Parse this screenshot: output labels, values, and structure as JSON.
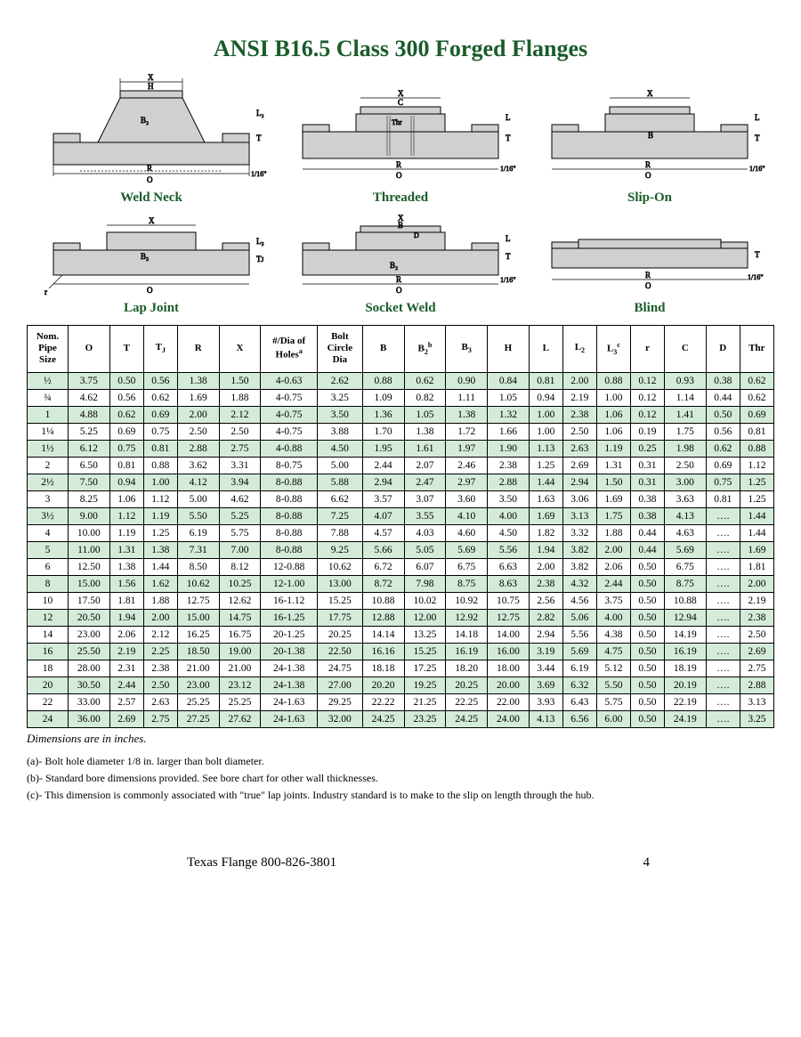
{
  "title": "ANSI B16.5 Class 300 Forged Flanges",
  "diagram_labels": {
    "weld_neck": "Weld Neck",
    "threaded": "Threaded",
    "slip_on": "Slip-On",
    "lap_joint": "Lap Joint",
    "socket_weld": "Socket Weld",
    "blind": "Blind"
  },
  "table": {
    "headers_plain": [
      "Nom. Pipe Size",
      "O",
      "T",
      "TJ",
      "R",
      "X",
      "#/Dia of Holesa",
      "Bolt Circle Dia",
      "B",
      "B2b",
      "B3",
      "H",
      "L",
      "L2",
      "L3c",
      "r",
      "C",
      "D",
      "Thr"
    ],
    "header_html": {
      "nom": "Nom.<br>Pipe<br>Size",
      "tj": "T<span class='sub'>J</span>",
      "holes": "#/Dia of<br>Holes<span class='sup'>a</span>",
      "bolt": "Bolt<br>Circle<br>Dia",
      "b2": "B<span class='sub'>2</span><span class='sup'>b</span>",
      "b3": "B<span class='sub'>3</span>",
      "l2": "L<span class='sub'>2</span>",
      "l3": "L<span class='sub'>3</span><span class='sup'>c</span>"
    },
    "rows": [
      [
        "½",
        "3.75",
        "0.50",
        "0.56",
        "1.38",
        "1.50",
        "4-0.63",
        "2.62",
        "0.88",
        "0.62",
        "0.90",
        "0.84",
        "0.81",
        "2.00",
        "0.88",
        "0.12",
        "0.93",
        "0.38",
        "0.62"
      ],
      [
        "¾",
        "4.62",
        "0.56",
        "0.62",
        "1.69",
        "1.88",
        "4-0.75",
        "3.25",
        "1.09",
        "0.82",
        "1.11",
        "1.05",
        "0.94",
        "2.19",
        "1.00",
        "0.12",
        "1.14",
        "0.44",
        "0.62"
      ],
      [
        "1",
        "4.88",
        "0.62",
        "0.69",
        "2.00",
        "2.12",
        "4-0.75",
        "3.50",
        "1.36",
        "1.05",
        "1.38",
        "1.32",
        "1.00",
        "2.38",
        "1.06",
        "0.12",
        "1.41",
        "0.50",
        "0.69"
      ],
      [
        "1¼",
        "5.25",
        "0.69",
        "0.75",
        "2.50",
        "2.50",
        "4-0.75",
        "3.88",
        "1.70",
        "1.38",
        "1.72",
        "1.66",
        "1.00",
        "2.50",
        "1.06",
        "0.19",
        "1.75",
        "0.56",
        "0.81"
      ],
      [
        "1½",
        "6.12",
        "0.75",
        "0.81",
        "2.88",
        "2.75",
        "4-0.88",
        "4.50",
        "1.95",
        "1.61",
        "1.97",
        "1.90",
        "1.13",
        "2.63",
        "1.19",
        "0.25",
        "1.98",
        "0.62",
        "0.88"
      ],
      [
        "2",
        "6.50",
        "0.81",
        "0.88",
        "3.62",
        "3.31",
        "8-0.75",
        "5.00",
        "2.44",
        "2.07",
        "2.46",
        "2.38",
        "1.25",
        "2.69",
        "1.31",
        "0.31",
        "2.50",
        "0.69",
        "1.12"
      ],
      [
        "2½",
        "7.50",
        "0.94",
        "1.00",
        "4.12",
        "3.94",
        "8-0.88",
        "5.88",
        "2.94",
        "2.47",
        "2.97",
        "2.88",
        "1.44",
        "2.94",
        "1.50",
        "0.31",
        "3.00",
        "0.75",
        "1.25"
      ],
      [
        "3",
        "8.25",
        "1.06",
        "1.12",
        "5.00",
        "4.62",
        "8-0.88",
        "6.62",
        "3.57",
        "3.07",
        "3.60",
        "3.50",
        "1.63",
        "3.06",
        "1.69",
        "0.38",
        "3.63",
        "0.81",
        "1.25"
      ],
      [
        "3½",
        "9.00",
        "1.12",
        "1.19",
        "5.50",
        "5.25",
        "8-0.88",
        "7.25",
        "4.07",
        "3.55",
        "4.10",
        "4.00",
        "1.69",
        "3.13",
        "1.75",
        "0.38",
        "4.13",
        "….",
        "1.44"
      ],
      [
        "4",
        "10.00",
        "1.19",
        "1.25",
        "6.19",
        "5.75",
        "8-0.88",
        "7.88",
        "4.57",
        "4.03",
        "4.60",
        "4.50",
        "1.82",
        "3.32",
        "1.88",
        "0.44",
        "4.63",
        "….",
        "1.44"
      ],
      [
        "5",
        "11.00",
        "1.31",
        "1.38",
        "7.31",
        "7.00",
        "8-0.88",
        "9.25",
        "5.66",
        "5.05",
        "5.69",
        "5.56",
        "1.94",
        "3.82",
        "2.00",
        "0.44",
        "5.69",
        "….",
        "1.69"
      ],
      [
        "6",
        "12.50",
        "1.38",
        "1.44",
        "8.50",
        "8.12",
        "12-0.88",
        "10.62",
        "6.72",
        "6.07",
        "6.75",
        "6.63",
        "2.00",
        "3.82",
        "2.06",
        "0.50",
        "6.75",
        "….",
        "1.81"
      ],
      [
        "8",
        "15.00",
        "1.56",
        "1.62",
        "10.62",
        "10.25",
        "12-1.00",
        "13.00",
        "8.72",
        "7.98",
        "8.75",
        "8.63",
        "2.38",
        "4.32",
        "2.44",
        "0.50",
        "8.75",
        "….",
        "2.00"
      ],
      [
        "10",
        "17.50",
        "1.81",
        "1.88",
        "12.75",
        "12.62",
        "16-1.12",
        "15.25",
        "10.88",
        "10.02",
        "10.92",
        "10.75",
        "2.56",
        "4.56",
        "3.75",
        "0.50",
        "10.88",
        "….",
        "2.19"
      ],
      [
        "12",
        "20.50",
        "1.94",
        "2.00",
        "15.00",
        "14.75",
        "16-1.25",
        "17.75",
        "12.88",
        "12.00",
        "12.92",
        "12.75",
        "2.82",
        "5.06",
        "4.00",
        "0.50",
        "12.94",
        "….",
        "2.38"
      ],
      [
        "14",
        "23.00",
        "2.06",
        "2.12",
        "16.25",
        "16.75",
        "20-1.25",
        "20.25",
        "14.14",
        "13.25",
        "14.18",
        "14.00",
        "2.94",
        "5.56",
        "4.38",
        "0.50",
        "14.19",
        "….",
        "2.50"
      ],
      [
        "16",
        "25.50",
        "2.19",
        "2.25",
        "18.50",
        "19.00",
        "20-1.38",
        "22.50",
        "16.16",
        "15.25",
        "16.19",
        "16.00",
        "3.19",
        "5.69",
        "4.75",
        "0.50",
        "16.19",
        "….",
        "2.69"
      ],
      [
        "18",
        "28.00",
        "2.31",
        "2.38",
        "21.00",
        "21.00",
        "24-1.38",
        "24.75",
        "18.18",
        "17.25",
        "18.20",
        "18.00",
        "3.44",
        "6.19",
        "5.12",
        "0.50",
        "18.19",
        "….",
        "2.75"
      ],
      [
        "20",
        "30.50",
        "2.44",
        "2.50",
        "23.00",
        "23.12",
        "24-1.38",
        "27.00",
        "20.20",
        "19.25",
        "20.25",
        "20.00",
        "3.69",
        "6.32",
        "5.50",
        "0.50",
        "20.19",
        "….",
        "2.88"
      ],
      [
        "22",
        "33.00",
        "2.57",
        "2.63",
        "25.25",
        "25.25",
        "24-1.63",
        "29.25",
        "22.22",
        "21.25",
        "22.25",
        "22.00",
        "3.93",
        "6.43",
        "5.75",
        "0.50",
        "22.19",
        "….",
        "3.13"
      ],
      [
        "24",
        "36.00",
        "2.69",
        "2.75",
        "27.25",
        "27.62",
        "24-1.63",
        "32.00",
        "24.25",
        "23.25",
        "24.25",
        "24.00",
        "4.13",
        "6.56",
        "6.00",
        "0.50",
        "24.19",
        "….",
        "3.25"
      ]
    ],
    "stripe_color": "#d4ebd9"
  },
  "dim_note": "Dimensions are in inches.",
  "footnotes": [
    "(a)-  Bolt hole diameter 1/8 in. larger than bolt diameter.",
    "(b)-  Standard bore dimensions provided.  See bore chart for other wall thicknesses.",
    "(c)-  This dimension is commonly associated with \"true\" lap joints.  Industry standard is to make to the slip on length through the hub."
  ],
  "footer": {
    "company": "Texas Flange 800-826-3801",
    "page": "4"
  },
  "colors": {
    "title": "#1a5c2a",
    "border": "#000000",
    "stripe": "#d4ebd9",
    "bg": "#ffffff"
  }
}
